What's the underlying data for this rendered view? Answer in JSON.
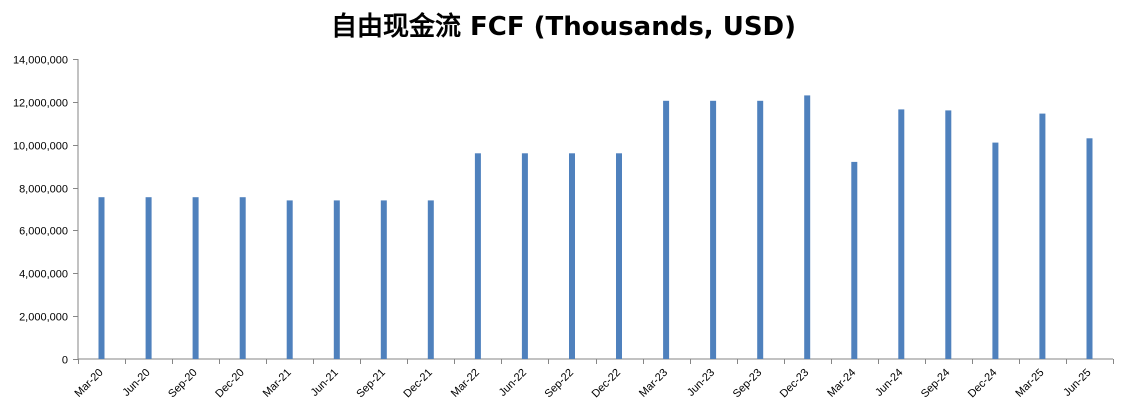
{
  "chart_data": {
    "type": "bar",
    "title": "自由现金流 FCF (Thousands, USD)",
    "xlabel": "",
    "ylabel": "",
    "categories": [
      "Mar-20",
      "Jun-20",
      "Sep-20",
      "Dec-20",
      "Mar-21",
      "Jun-21",
      "Sep-21",
      "Dec-21",
      "Mar-22",
      "Jun-22",
      "Sep-22",
      "Dec-22",
      "Mar-23",
      "Jun-23",
      "Sep-23",
      "Dec-23",
      "Mar-24",
      "Jun-24",
      "Sep-24",
      "Dec-24",
      "Mar-25",
      "Jun-25"
    ],
    "values": [
      7550000,
      7550000,
      7550000,
      7550000,
      7400000,
      7400000,
      7400000,
      7400000,
      9600000,
      9600000,
      9600000,
      9600000,
      12050000,
      12050000,
      12050000,
      12300000,
      9200000,
      11650000,
      11600000,
      10100000,
      11450000,
      10300000
    ],
    "ylim": [
      0,
      14000000
    ],
    "yticks": [
      0,
      2000000,
      4000000,
      6000000,
      8000000,
      10000000,
      12000000,
      14000000
    ],
    "ytick_labels": [
      "0",
      "2,000,000",
      "4,000,000",
      "6,000,000",
      "8,000,000",
      "10,000,000",
      "12,000,000",
      "14,000,000"
    ],
    "grid": false,
    "legend": "none",
    "bar_color": "#4F81BD",
    "axis_color": "#868686"
  }
}
